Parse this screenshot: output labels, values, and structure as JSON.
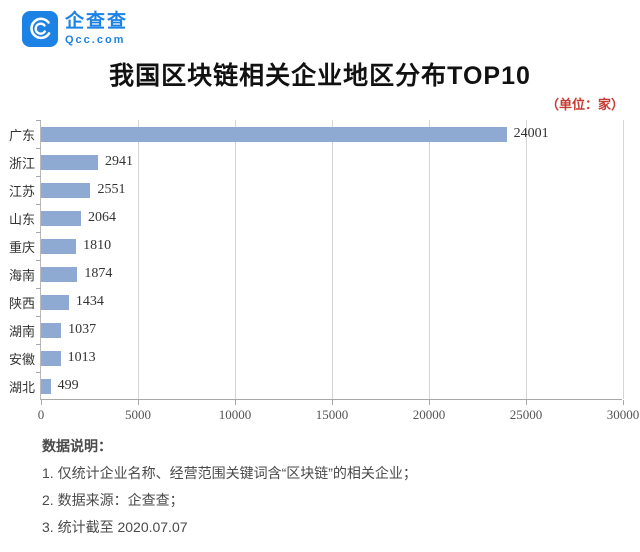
{
  "brand": {
    "name": "企查查",
    "domain": "Qcc.com",
    "color": "#1d82e6"
  },
  "header": {
    "title": "我国区块链相关企业地区分布TOP10",
    "unit_label": "（单位：家）"
  },
  "chart_data": {
    "type": "bar",
    "orientation": "horizontal",
    "title": "我国区块链相关企业地区分布TOP10",
    "unit": "家",
    "categories": [
      "广东",
      "浙江",
      "江苏",
      "山东",
      "重庆",
      "海南",
      "陕西",
      "湖南",
      "安徽",
      "湖北"
    ],
    "values": [
      24001,
      2941,
      2551,
      2064,
      1810,
      1874,
      1434,
      1037,
      1013,
      499
    ],
    "xlabel": "",
    "ylabel": "",
    "xlim": [
      0,
      30000
    ],
    "xticks": [
      0,
      5000,
      10000,
      15000,
      20000,
      25000,
      30000
    ],
    "grid": true,
    "legend": false,
    "bar_color": "#8ea9d2"
  },
  "footer": {
    "heading": "数据说明：",
    "notes": [
      "1. 仅统计企业名称、经营范围关键词含“区块链”的相关企业；",
      "2. 数据来源：企查查；",
      "3. 统计截至 2020.07.07"
    ]
  }
}
